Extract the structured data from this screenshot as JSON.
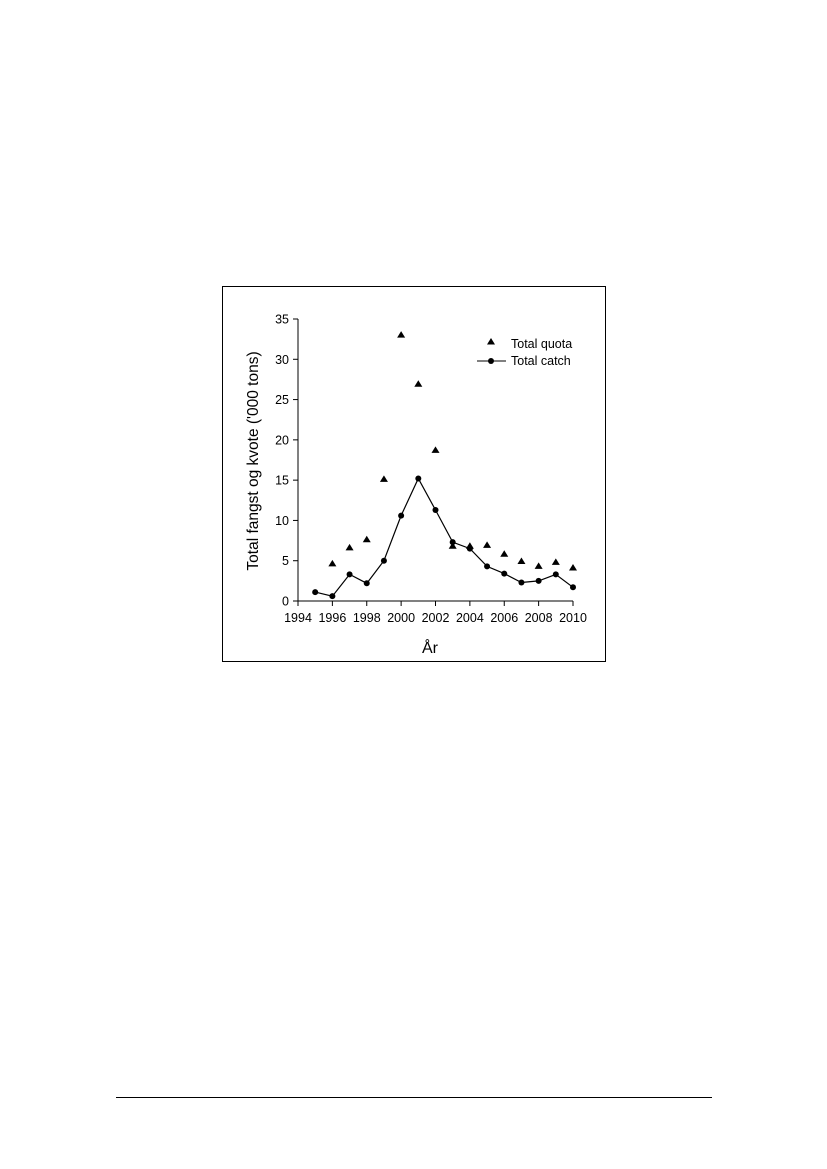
{
  "chart_data": {
    "type": "line",
    "title": "",
    "xlabel": "År",
    "ylabel": "Total fangst og kvote ('000 tons)",
    "xlim": [
      1994,
      2010
    ],
    "ylim": [
      0,
      35
    ],
    "x_ticks": [
      1994,
      1996,
      1998,
      2000,
      2002,
      2004,
      2006,
      2008,
      2010
    ],
    "y_ticks": [
      0,
      5,
      10,
      15,
      20,
      25,
      30,
      35
    ],
    "grid": false,
    "legend_position": "top-right",
    "series": [
      {
        "name": "Total quota",
        "style": "markers-triangle",
        "x": [
          1996,
          1997,
          1998,
          1999,
          2000,
          2001,
          2002,
          2003,
          2004,
          2005,
          2006,
          2007,
          2008,
          2009,
          2010
        ],
        "values": [
          4.6,
          6.6,
          7.6,
          15.1,
          33.0,
          26.9,
          18.7,
          6.8,
          6.8,
          6.9,
          5.8,
          4.9,
          4.3,
          4.8,
          4.1
        ]
      },
      {
        "name": "Total catch",
        "style": "line-circle",
        "x": [
          1995,
          1996,
          1997,
          1998,
          1999,
          2000,
          2001,
          2002,
          2003,
          2004,
          2005,
          2006,
          2007,
          2008,
          2009,
          2010
        ],
        "values": [
          1.1,
          0.6,
          3.3,
          2.2,
          5.0,
          10.6,
          15.2,
          11.3,
          7.3,
          6.5,
          4.3,
          3.4,
          2.3,
          2.5,
          3.3,
          1.7
        ]
      }
    ]
  }
}
